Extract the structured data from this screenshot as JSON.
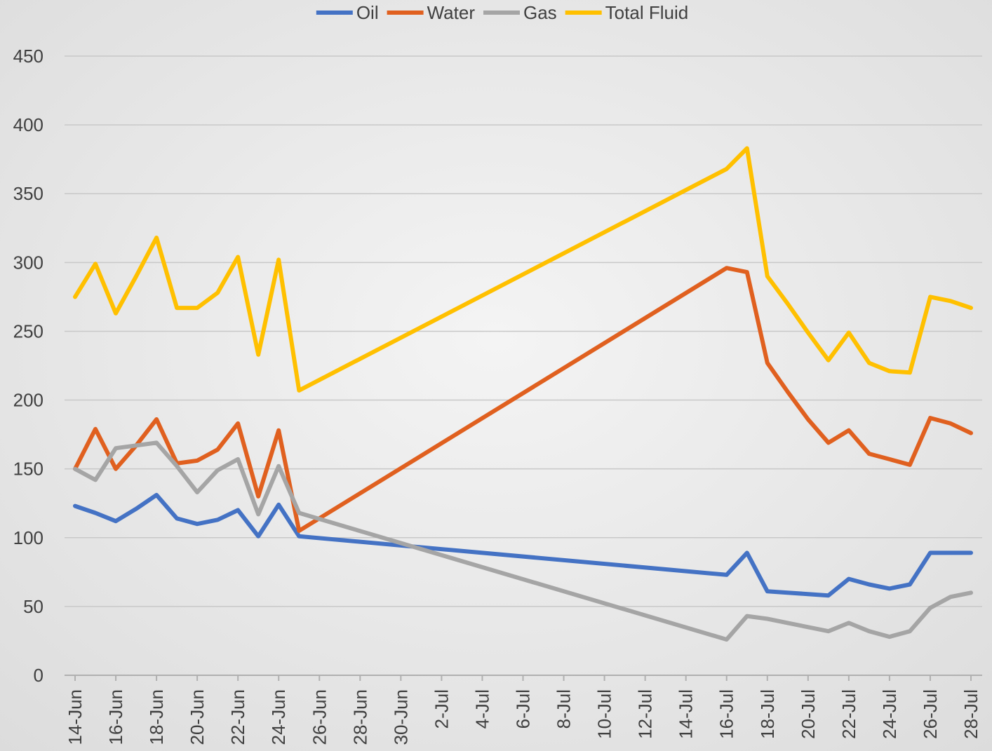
{
  "chart_data": {
    "type": "line",
    "x": [
      "14-Jun",
      "15-Jun",
      "16-Jun",
      "17-Jun",
      "18-Jun",
      "19-Jun",
      "20-Jun",
      "21-Jun",
      "22-Jun",
      "23-Jun",
      "24-Jun",
      "25-Jun",
      "16-Jul",
      "17-Jul",
      "18-Jul",
      "19-Jul",
      "20-Jul",
      "21-Jul",
      "22-Jul",
      "23-Jul",
      "24-Jul",
      "25-Jul",
      "26-Jul",
      "27-Jul",
      "28-Jul"
    ],
    "series": [
      {
        "name": "Oil",
        "color": "#4472c4",
        "values": [
          123,
          118,
          112,
          121,
          131,
          114,
          110,
          113,
          120,
          101,
          124,
          101,
          73,
          89,
          61,
          60,
          59,
          58,
          70,
          66,
          63,
          66,
          89,
          89,
          89
        ]
      },
      {
        "name": "Water",
        "color": "#e0601f",
        "values": [
          150,
          179,
          150,
          167,
          186,
          154,
          156,
          164,
          183,
          130,
          178,
          105,
          296,
          293,
          227,
          206,
          186,
          169,
          178,
          161,
          157,
          153,
          187,
          183,
          176
        ]
      },
      {
        "name": "Gas",
        "color": "#a5a5a5",
        "values": [
          150,
          142,
          165,
          167,
          169,
          152,
          133,
          149,
          157,
          117,
          152,
          118,
          26,
          43,
          41,
          38,
          35,
          32,
          38,
          32,
          28,
          32,
          49,
          57,
          60
        ]
      },
      {
        "name": "Total Fluid",
        "color": "#ffc000",
        "values": [
          275,
          299,
          263,
          290,
          318,
          267,
          267,
          278,
          304,
          233,
          302,
          207,
          368,
          383,
          290,
          270,
          249,
          229,
          249,
          227,
          221,
          220,
          275,
          272,
          267
        ]
      }
    ],
    "xticks": [
      "14-Jun",
      "16-Jun",
      "18-Jun",
      "20-Jun",
      "22-Jun",
      "24-Jun",
      "26-Jun",
      "28-Jun",
      "30-Jun",
      "2-Jul",
      "4-Jul",
      "6-Jul",
      "8-Jul",
      "10-Jul",
      "12-Jul",
      "14-Jul",
      "16-Jul",
      "18-Jul",
      "20-Jul",
      "22-Jul",
      "24-Jul",
      "26-Jul",
      "28-Jul"
    ],
    "ylim": [
      0,
      450
    ],
    "yticks": [
      0,
      50,
      100,
      150,
      200,
      250,
      300,
      350,
      400,
      450
    ],
    "grid": true,
    "legend": "top"
  }
}
